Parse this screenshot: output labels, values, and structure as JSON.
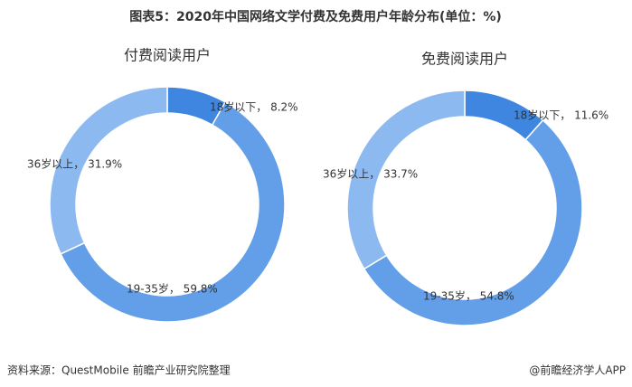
{
  "header": {
    "title": "图表5：2020年中国网络文学付费及免费用户年龄分布(单位：%)"
  },
  "chart_data": [
    {
      "type": "pie",
      "title": "付费阅读用户",
      "donut": true,
      "values": [
        8.2,
        59.8,
        31.9
      ],
      "value_labels": [
        "18岁以下， 8.2%",
        "19-35岁， 59.8%",
        "36岁以上， 31.9%"
      ],
      "colors": [
        "#3f86e0",
        "#629fe8",
        "#8cbaf0"
      ]
    },
    {
      "type": "pie",
      "title": "免费阅读用户",
      "donut": true,
      "values": [
        11.6,
        54.8,
        33.7
      ],
      "value_labels": [
        "18岁以下， 11.6%",
        "19-35岁， 54.8%",
        "36岁以上， 33.7%"
      ],
      "colors": [
        "#3f86e0",
        "#629fe8",
        "#8cbaf0"
      ]
    }
  ],
  "footer": {
    "source": "资料来源：QuestMobile 前瞻产业研究院整理",
    "credit": "@前瞻经济学人APP"
  }
}
